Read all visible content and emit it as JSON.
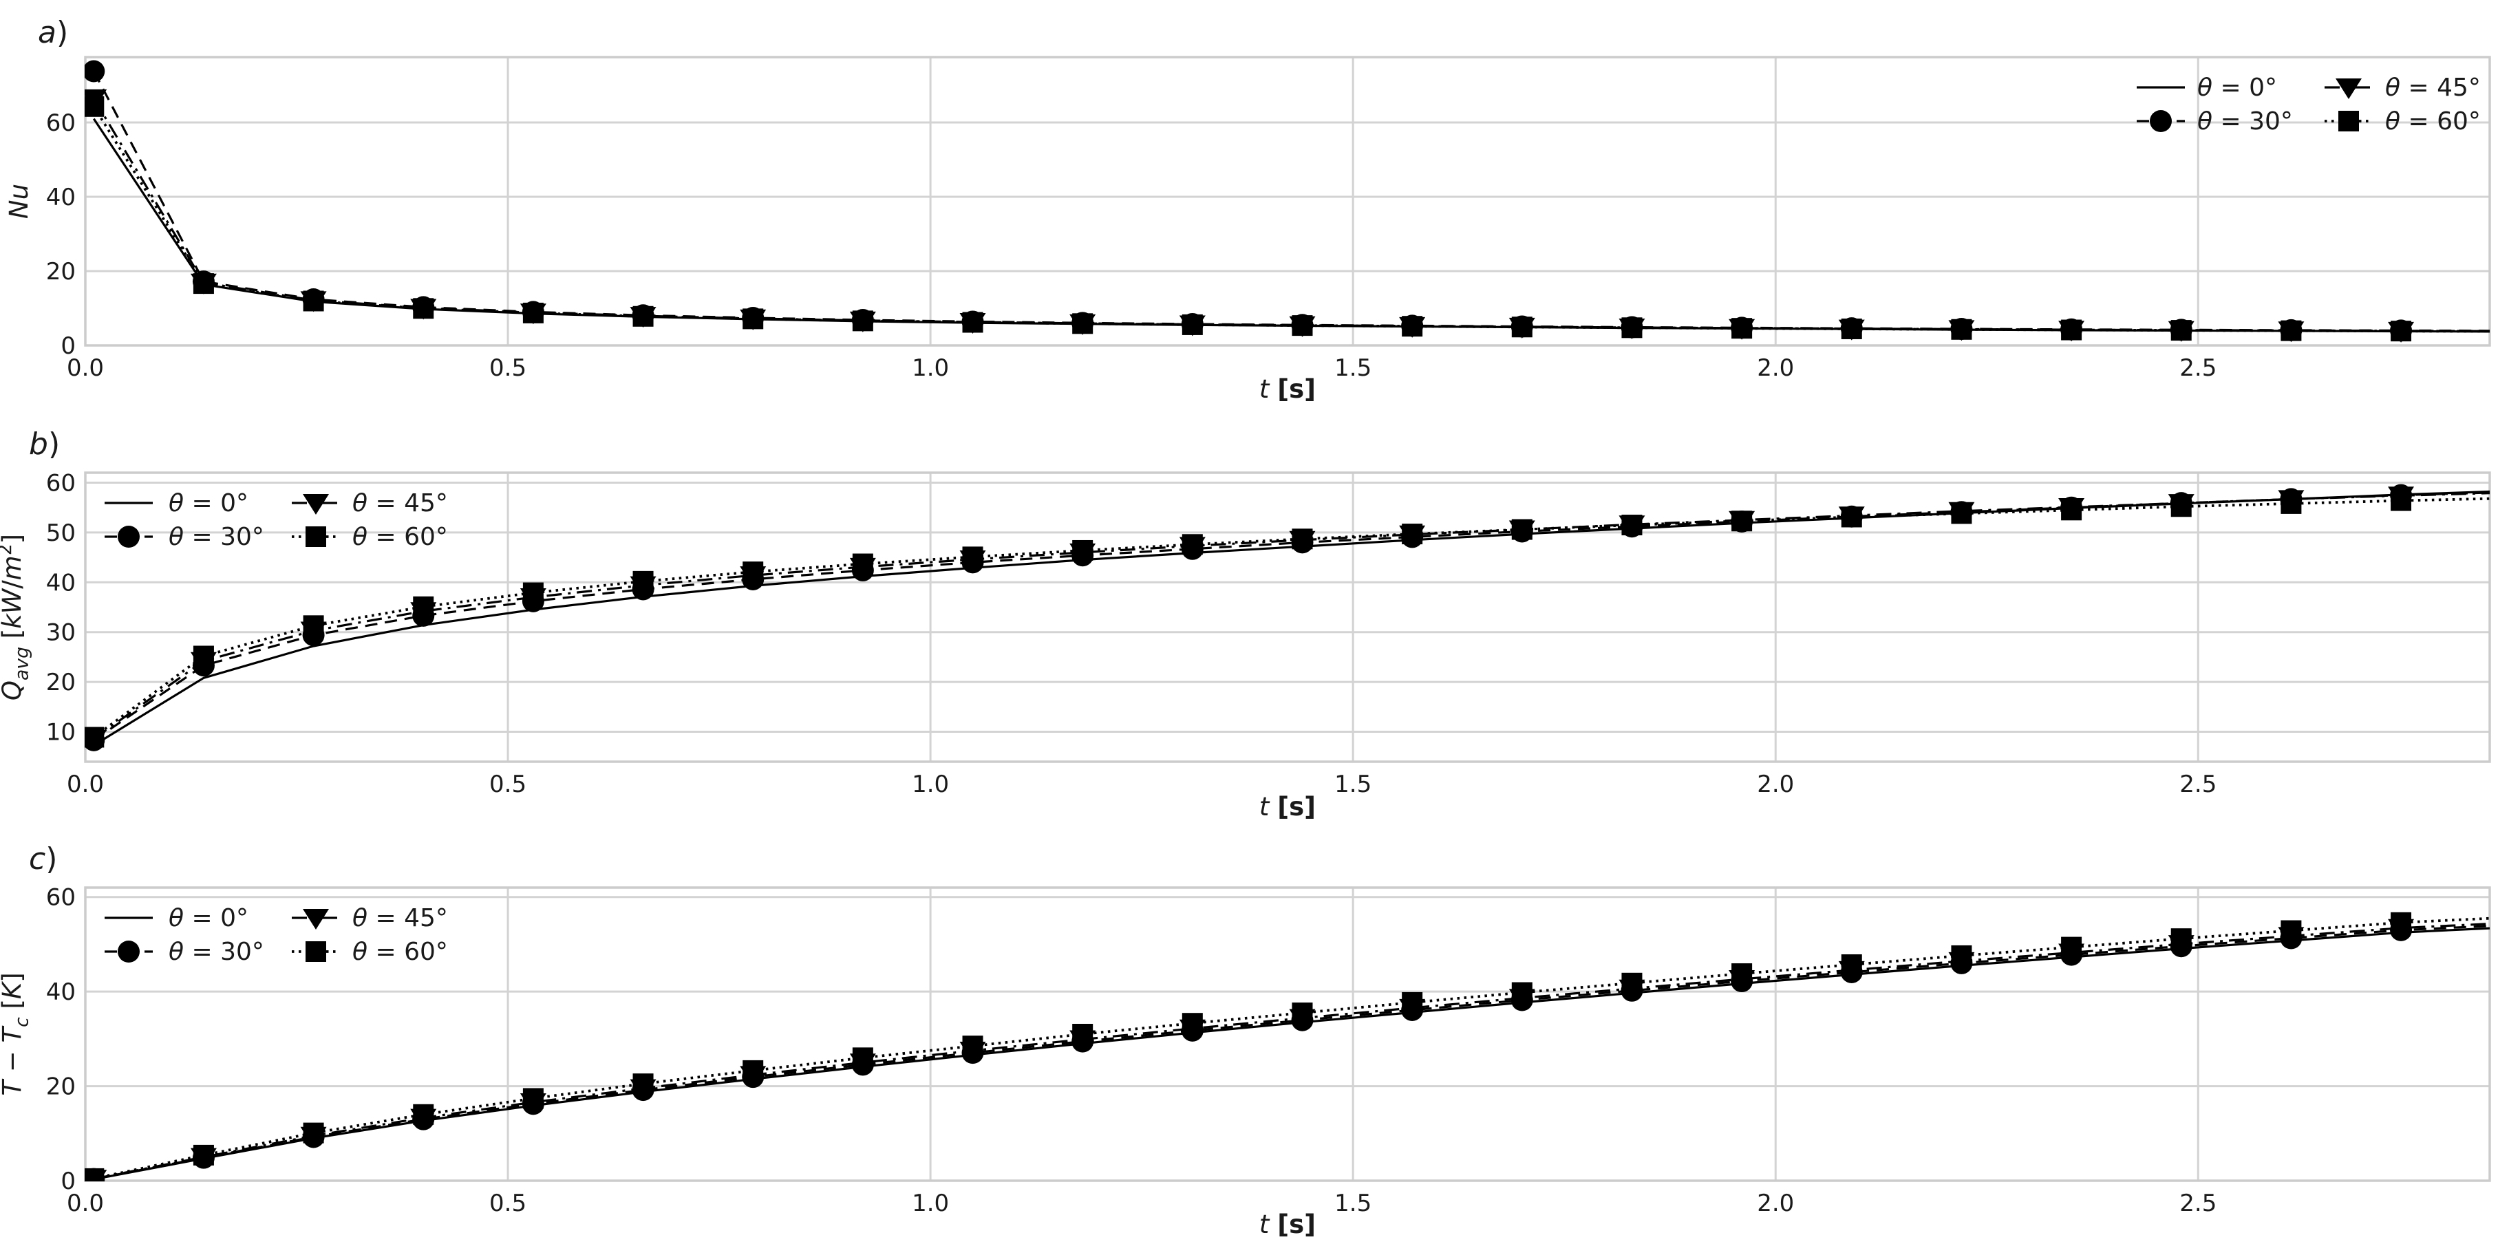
{
  "figure": {
    "background": "#ffffff",
    "text_color": "#1a1a1a",
    "grid_color": "#d3d3d3",
    "spine_color": "#cccccc",
    "series_color": "#000000",
    "xlabel": "t **[s]**",
    "xlim": [
      0.0,
      2.845
    ],
    "xticks": [
      0.0,
      0.5,
      1.0,
      1.5,
      2.0,
      2.5
    ],
    "xtick_labels": [
      "0.0",
      "0.5",
      "1.0",
      "1.5",
      "2.0",
      "2.5"
    ],
    "t": [
      0.01,
      0.14,
      0.27,
      0.4,
      0.53,
      0.66,
      0.79,
      0.92,
      1.05,
      1.18,
      1.31,
      1.44,
      1.57,
      1.7,
      1.83,
      1.96,
      2.09,
      2.22,
      2.35,
      2.48,
      2.61,
      2.74
    ],
    "legend_labels": [
      "θ = 0°",
      "θ = 30°",
      "θ = 45°",
      "θ = 60°"
    ]
  },
  "chart_data": [
    {
      "type": "line",
      "panel_label": "a)",
      "ylabel": "Nu",
      "xlabel": "t **[s]**",
      "ylim": [
        0,
        77.6
      ],
      "yticks": [
        0,
        20,
        40,
        60
      ],
      "grid": true,
      "legend_position": "upper-right",
      "series": [
        {
          "name": "θ = 0°",
          "angle": 0,
          "line": "solid",
          "marker": "none",
          "values": [
            61.0,
            16.4,
            11.8,
            9.8,
            8.6,
            7.7,
            7.05,
            6.5,
            6.1,
            5.8,
            5.5,
            5.3,
            5.1,
            4.9,
            4.7,
            4.55,
            4.4,
            4.25,
            4.1,
            4.0,
            3.9,
            3.8
          ],
          "end_value": 3.72
        },
        {
          "name": "θ = 30°",
          "angle": 30,
          "line": "dashed",
          "marker": "circle",
          "values": [
            73.8,
            17.2,
            12.4,
            10.3,
            9.0,
            8.1,
            7.4,
            6.85,
            6.4,
            6.05,
            5.75,
            5.5,
            5.3,
            5.1,
            4.9,
            4.75,
            4.6,
            4.45,
            4.3,
            4.2,
            4.1,
            4.0
          ],
          "end_value": 3.92
        },
        {
          "name": "θ = 45°",
          "angle": 45,
          "line": "dashdot",
          "marker": "triangle-down",
          "values": [
            66.5,
            16.9,
            12.15,
            10.1,
            8.85,
            7.95,
            7.25,
            6.7,
            6.3,
            5.95,
            5.65,
            5.42,
            5.22,
            5.02,
            4.82,
            4.67,
            4.52,
            4.37,
            4.22,
            4.12,
            4.02,
            3.92
          ],
          "end_value": 3.84
        },
        {
          "name": "θ = 60°",
          "angle": 60,
          "line": "dotted",
          "marker": "square",
          "values": [
            64.3,
            16.65,
            11.95,
            9.95,
            8.72,
            7.82,
            7.15,
            6.6,
            6.2,
            5.87,
            5.57,
            5.35,
            5.15,
            4.95,
            4.76,
            4.6,
            4.45,
            4.3,
            4.16,
            4.06,
            3.96,
            3.86
          ],
          "end_value": 3.78
        }
      ]
    },
    {
      "type": "line",
      "panel_label": "b)",
      "ylabel": "Q̇_{avg} [kW/m^{2}]",
      "xlabel": "t **[s]**",
      "ylim": [
        4,
        62
      ],
      "yticks": [
        10,
        20,
        30,
        40,
        50,
        60
      ],
      "grid": true,
      "legend_position": "upper-left",
      "series": [
        {
          "name": "θ = 0°",
          "angle": 0,
          "line": "solid",
          "marker": "none",
          "values": [
            7.3,
            20.8,
            27.2,
            31.4,
            34.5,
            37.1,
            39.3,
            41.2,
            42.9,
            44.5,
            45.9,
            47.2,
            48.5,
            49.7,
            50.8,
            51.9,
            52.9,
            53.9,
            54.9,
            55.8,
            56.7,
            57.6
          ],
          "end_value": 58.2
        },
        {
          "name": "θ = 30°",
          "angle": 30,
          "line": "dashed",
          "marker": "circle",
          "values": [
            8.3,
            23.3,
            29.4,
            33.3,
            36.2,
            38.6,
            40.6,
            42.4,
            44.0,
            45.4,
            46.7,
            48.0,
            49.1,
            50.2,
            51.2,
            52.2,
            53.2,
            54.1,
            55.0,
            55.9,
            56.7,
            57.5
          ],
          "end_value": 58.0
        },
        {
          "name": "θ = 45°",
          "angle": 45,
          "line": "dashdot",
          "marker": "triangle-down",
          "values": [
            8.6,
            24.2,
            30.3,
            34.2,
            37.0,
            39.4,
            41.4,
            43.1,
            44.6,
            46.0,
            47.3,
            48.5,
            49.6,
            50.6,
            51.6,
            52.5,
            53.4,
            54.3,
            55.1,
            55.9,
            56.7,
            57.4
          ],
          "end_value": 57.9
        },
        {
          "name": "θ = 60°",
          "angle": 60,
          "line": "dotted",
          "marker": "square",
          "values": [
            8.9,
            25.2,
            31.3,
            35.1,
            37.9,
            40.2,
            42.1,
            43.7,
            45.1,
            46.4,
            47.6,
            48.7,
            49.7,
            50.6,
            51.5,
            52.3,
            53.1,
            53.8,
            54.5,
            55.2,
            55.8,
            56.4
          ],
          "end_value": 56.8
        }
      ]
    },
    {
      "type": "line",
      "panel_label": "c)",
      "ylabel": "T − T_{c} [K]",
      "xlabel": "t **[s]**",
      "ylim": [
        0,
        62
      ],
      "yticks": [
        0,
        20,
        40,
        60
      ],
      "grid": true,
      "legend_position": "upper-left",
      "series": [
        {
          "name": "θ = 0°",
          "angle": 0,
          "line": "solid",
          "marker": "none",
          "values": [
            0.3,
            4.7,
            9.0,
            12.7,
            15.9,
            18.8,
            21.5,
            24.1,
            26.6,
            29.0,
            31.3,
            33.5,
            35.6,
            37.7,
            39.7,
            41.7,
            43.6,
            45.5,
            47.3,
            49.1,
            50.8,
            52.5
          ],
          "end_value": 53.4
        },
        {
          "name": "θ = 30°",
          "angle": 30,
          "line": "dashed",
          "marker": "circle",
          "values": [
            0.35,
            4.85,
            9.25,
            13.0,
            16.25,
            19.2,
            21.95,
            24.55,
            27.05,
            29.45,
            31.75,
            33.95,
            36.1,
            38.2,
            40.2,
            42.2,
            44.1,
            46.0,
            47.8,
            49.6,
            51.3,
            53.0
          ],
          "end_value": 53.9
        },
        {
          "name": "θ = 45°",
          "angle": 45,
          "line": "dashdot",
          "marker": "triangle-down",
          "values": [
            0.4,
            5.0,
            9.5,
            13.3,
            16.6,
            19.55,
            22.35,
            25.0,
            27.5,
            29.9,
            32.2,
            34.4,
            36.55,
            38.65,
            40.65,
            42.65,
            44.55,
            46.45,
            48.25,
            50.05,
            51.75,
            53.45
          ],
          "end_value": 54.35
        },
        {
          "name": "θ = 60°",
          "angle": 60,
          "line": "dotted",
          "marker": "square",
          "values": [
            0.45,
            5.4,
            10.1,
            14.0,
            17.4,
            20.5,
            23.3,
            26.0,
            28.5,
            31.0,
            33.3,
            35.5,
            37.7,
            39.8,
            41.8,
            43.8,
            45.7,
            47.6,
            49.4,
            51.2,
            52.9,
            54.6
          ],
          "end_value": 55.5
        }
      ]
    }
  ]
}
